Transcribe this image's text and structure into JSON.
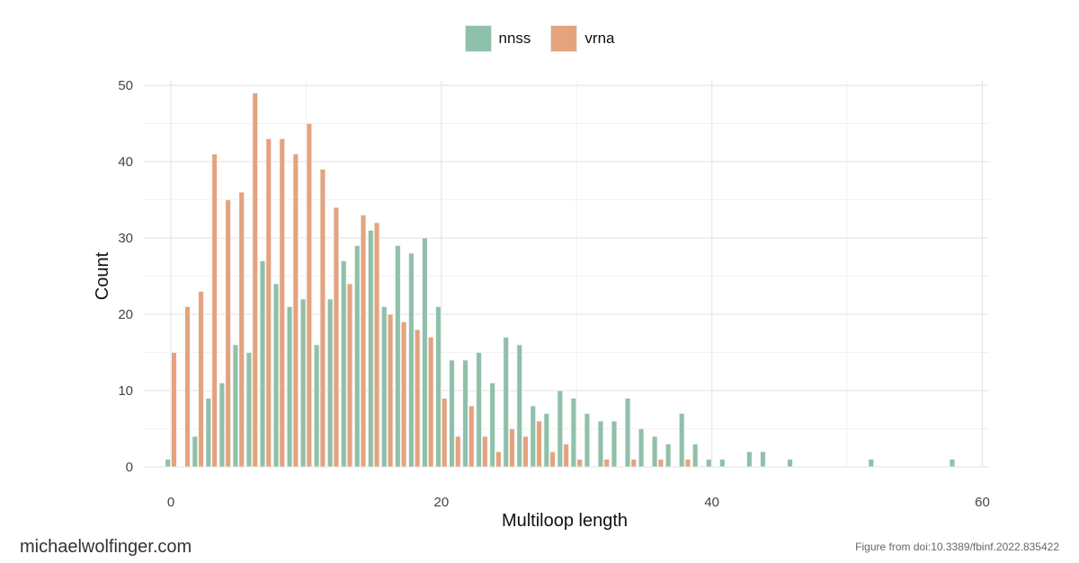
{
  "chart_data": {
    "type": "bar",
    "xlabel": "Multiloop length",
    "ylabel": "Count",
    "xlim": [
      -2,
      60.5
    ],
    "ylim": [
      0,
      50
    ],
    "xticks": [
      0,
      20,
      40,
      60
    ],
    "yticks": [
      0,
      10,
      20,
      30,
      40,
      50
    ],
    "grid": true,
    "legend_position": "top",
    "series": [
      {
        "name": "nnss",
        "color": "#8fc0a9",
        "x": [
          0,
          2,
          3,
          4,
          5,
          6,
          7,
          8,
          9,
          10,
          11,
          12,
          13,
          14,
          15,
          16,
          17,
          18,
          19,
          20,
          21,
          22,
          23,
          24,
          25,
          26,
          27,
          28,
          29,
          30,
          31,
          32,
          33,
          34,
          35,
          36,
          37,
          38,
          39,
          40,
          41,
          43,
          44,
          46,
          52,
          58
        ],
        "values": [
          1,
          4,
          9,
          11,
          16,
          15,
          27,
          24,
          21,
          22,
          16,
          22,
          27,
          29,
          31,
          21,
          29,
          28,
          30,
          21,
          14,
          14,
          15,
          11,
          17,
          16,
          8,
          7,
          10,
          9,
          7,
          6,
          6,
          9,
          5,
          4,
          3,
          7,
          3,
          1,
          1,
          2,
          2,
          1,
          1,
          1
        ]
      },
      {
        "name": "vrna",
        "color": "#e4a37d",
        "x": [
          0,
          1,
          2,
          3,
          4,
          5,
          6,
          7,
          8,
          9,
          10,
          11,
          12,
          13,
          14,
          15,
          16,
          17,
          18,
          19,
          20,
          21,
          22,
          23,
          24,
          25,
          26,
          27,
          28,
          29,
          30,
          32,
          34,
          36,
          38
        ],
        "values": [
          15,
          21,
          23,
          41,
          35,
          36,
          49,
          43,
          43,
          41,
          45,
          39,
          34,
          24,
          33,
          32,
          20,
          19,
          18,
          17,
          9,
          4,
          8,
          4,
          2,
          5,
          4,
          6,
          2,
          3,
          1,
          1,
          1,
          1,
          1
        ]
      }
    ]
  },
  "footer": {
    "left": "michaelwolfinger.com",
    "right": "Figure from doi:10.3389/fbinf.2022.835422"
  }
}
